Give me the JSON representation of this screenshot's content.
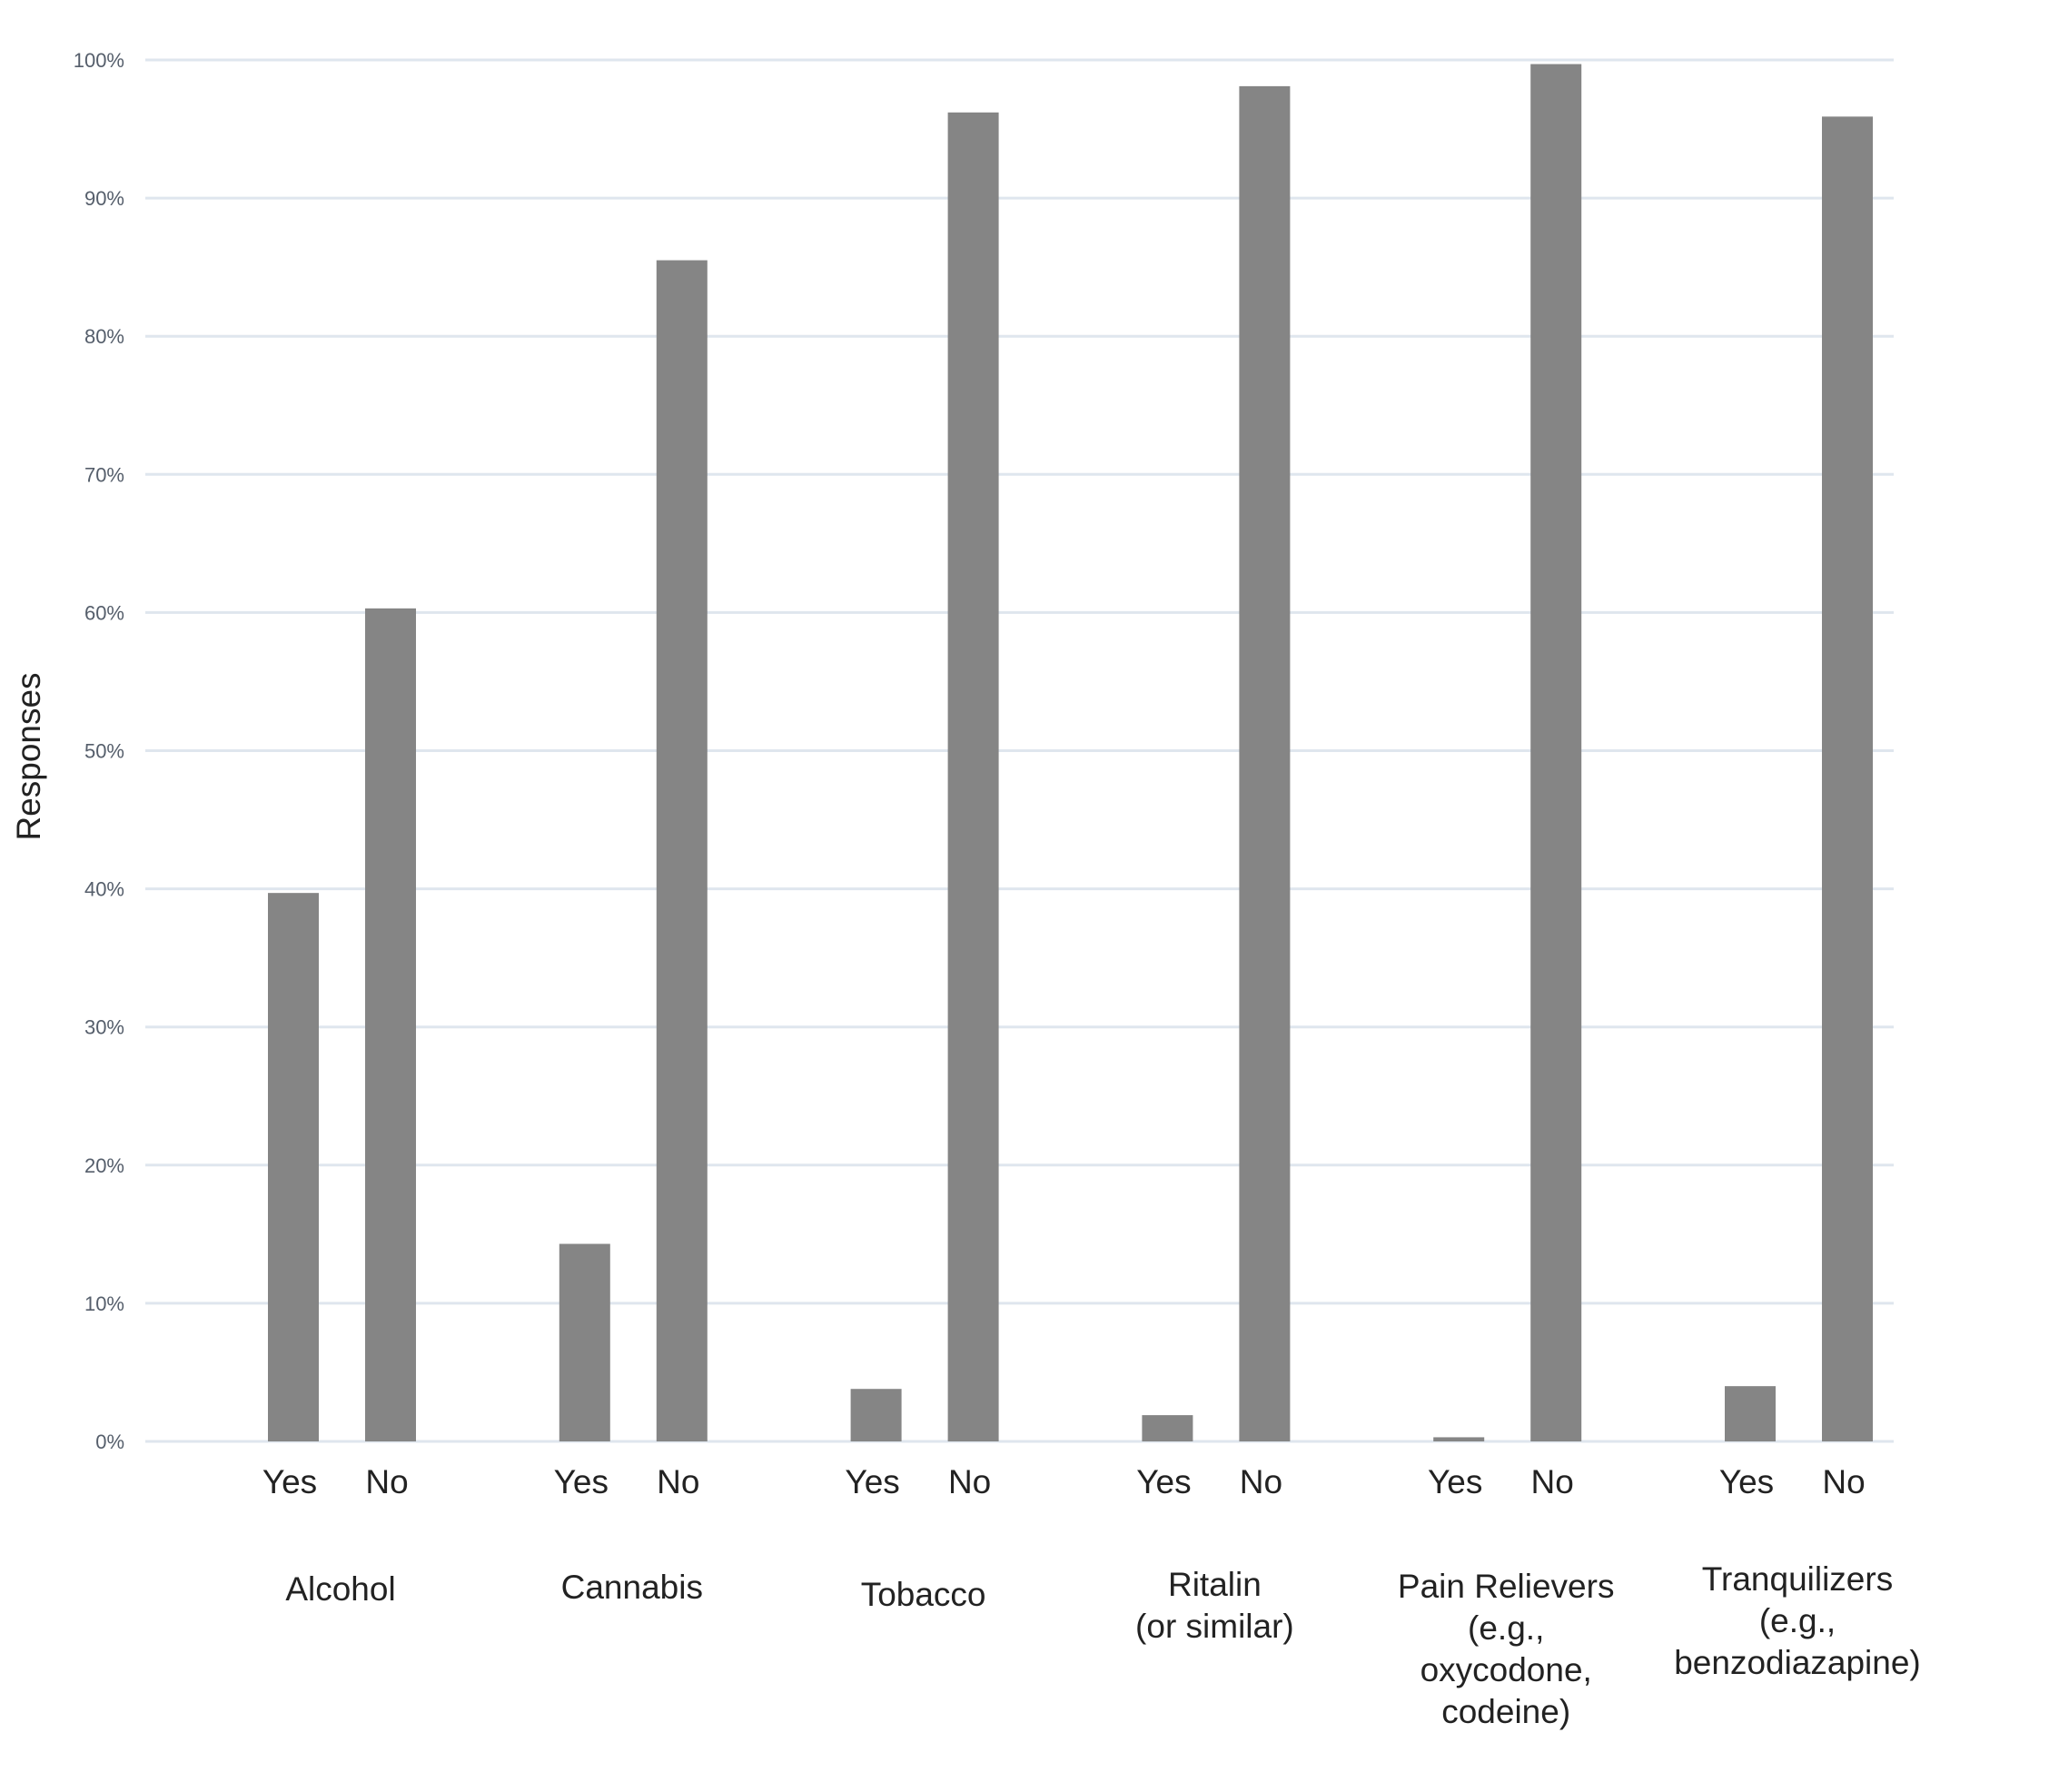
{
  "chart_data": {
    "type": "bar",
    "ylabel": "Responses",
    "ylim": [
      0,
      100
    ],
    "y_ticks": [
      "0%",
      "10%",
      "20%",
      "30%",
      "40%",
      "50%",
      "60%",
      "70%",
      "80%",
      "90%",
      "100%"
    ],
    "grid": true,
    "bar_color": "#858585",
    "grid_color": "#dfe6ee",
    "groups": [
      {
        "label": [
          "Alcohol"
        ],
        "bars": [
          {
            "label": "Yes",
            "value": 39.7
          },
          {
            "label": "No",
            "value": 60.3
          }
        ]
      },
      {
        "label": [
          "Cannabis"
        ],
        "bars": [
          {
            "label": "Yes",
            "value": 14.3
          },
          {
            "label": "No",
            "value": 85.5
          }
        ]
      },
      {
        "label": [
          "Tobacco"
        ],
        "bars": [
          {
            "label": "Yes",
            "value": 3.8
          },
          {
            "label": "No",
            "value": 96.2
          }
        ]
      },
      {
        "label": [
          "Ritalin",
          "(or similar)"
        ],
        "bars": [
          {
            "label": "Yes",
            "value": 1.9
          },
          {
            "label": "No",
            "value": 98.1
          }
        ]
      },
      {
        "label": [
          "Pain Relievers",
          "(e.g.,",
          "oxycodone,",
          "codeine)"
        ],
        "bars": [
          {
            "label": "Yes",
            "value": 0.3
          },
          {
            "label": "No",
            "value": 99.7
          }
        ]
      },
      {
        "label": [
          "Tranquilizers",
          "(e.g.,",
          "benzodiazapine)"
        ],
        "bars": [
          {
            "label": "Yes",
            "value": 4.0
          },
          {
            "label": "No",
            "value": 95.9
          }
        ]
      }
    ]
  }
}
